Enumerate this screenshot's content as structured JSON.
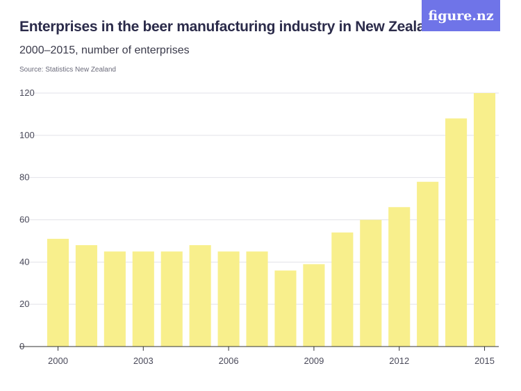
{
  "header": {
    "title": "Enterprises in the beer manufacturing industry in New Zealand",
    "subtitle": "2000–2015, number of enterprises",
    "source": "Source: Statistics New Zealand",
    "logo_text": "figure.nz"
  },
  "colors": {
    "bar": "#f8ef8c",
    "gridline": "#e2e2e8",
    "axis": "#333333",
    "logo_bg": "#6f74e8"
  },
  "chart_data": {
    "type": "bar",
    "title": "Enterprises in the beer manufacturing industry in New Zealand",
    "subtitle": "2000–2015, number of enterprises",
    "xlabel": "",
    "ylabel": "",
    "categories": [
      "2000",
      "2001",
      "2002",
      "2003",
      "2004",
      "2005",
      "2006",
      "2007",
      "2008",
      "2009",
      "2010",
      "2011",
      "2012",
      "2013",
      "2014",
      "2015"
    ],
    "values": [
      51,
      48,
      45,
      45,
      45,
      48,
      45,
      45,
      36,
      39,
      54,
      60,
      66,
      78,
      108,
      120
    ],
    "ylim": [
      0,
      120
    ],
    "yticks": [
      "0",
      "20",
      "40",
      "60",
      "80",
      "100",
      "120"
    ],
    "xticks": [
      "2000",
      "2003",
      "2006",
      "2009",
      "2012",
      "2015"
    ],
    "grid": true
  }
}
